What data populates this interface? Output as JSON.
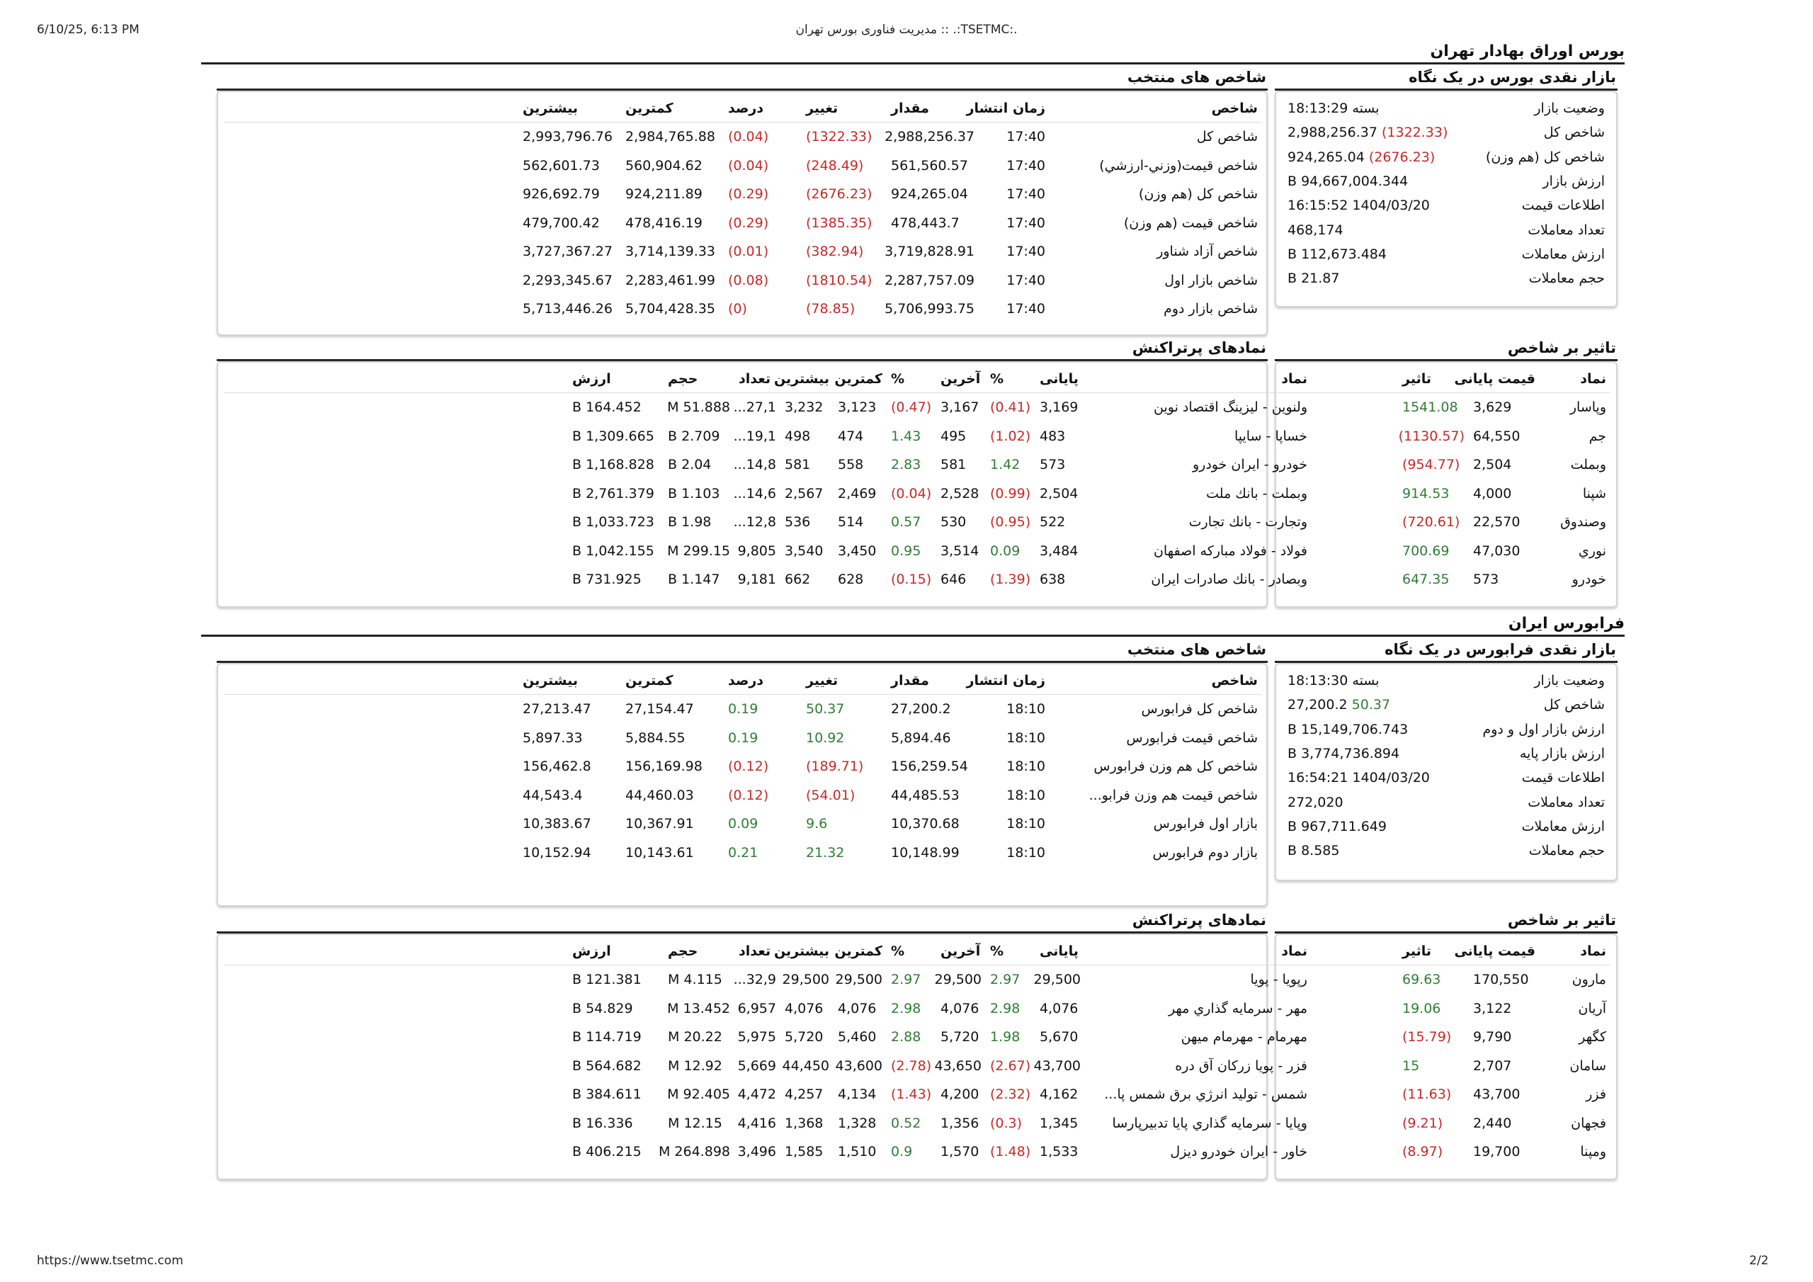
{
  "header": {
    "datetime": "6/10/25, 6:13 PM",
    "title": "مدیریت فناوری بورس تهران :: .:TSETMC:."
  },
  "footer": {
    "url": "https://www.tsetmc.com",
    "page": "2/2"
  },
  "tse": {
    "section_title": "بورس اوراق بهادار تهران",
    "glance": {
      "title": "بازار نقدی بورس در یک نگاه",
      "rows": [
        {
          "k": "وضعیت بازار",
          "v": "بسته 18:13:29",
          "c": ""
        },
        {
          "k": "شاخص کل",
          "v": "2,988,256.37",
          "c": "(1322.33)",
          "cc": "neg"
        },
        {
          "k": "شاخص کل (هم وزن)",
          "v": "924,265.04",
          "c": "(2676.23)",
          "cc": "neg"
        },
        {
          "k": "ارزش بازار",
          "v": "94,667,004.344 B",
          "c": ""
        },
        {
          "k": "اطلاعات قیمت",
          "v": "1404/03/20 16:15:52",
          "c": ""
        },
        {
          "k": "تعداد معاملات",
          "v": "468,174",
          "c": ""
        },
        {
          "k": "ارزش معاملات",
          "v": "112,673.484 B",
          "c": ""
        },
        {
          "k": "حجم معاملات",
          "v": "21.87 B",
          "c": ""
        }
      ]
    },
    "indices": {
      "title": "شاخص های منتخب",
      "headers": [
        "شاخص",
        "زمان انتشار",
        "مقدار",
        "تغییر",
        "درصد",
        "کمترین",
        "بیشترین"
      ],
      "rows": [
        {
          "name": "شاخص کل",
          "time": "17:40",
          "value": "2,988,256.37",
          "change": "(1322.33)",
          "cc": "neg",
          "pct": "(0.04)",
          "pc": "neg",
          "min": "2,984,765.88",
          "max": "2,993,796.76"
        },
        {
          "name": "شاخص قیمت(وزني-ارزشي)",
          "time": "17:40",
          "value": "561,560.57",
          "change": "(248.49)",
          "cc": "neg",
          "pct": "(0.04)",
          "pc": "neg",
          "min": "560,904.62",
          "max": "562,601.73"
        },
        {
          "name": "شاخص کل (هم وزن)",
          "time": "17:40",
          "value": "924,265.04",
          "change": "(2676.23)",
          "cc": "neg",
          "pct": "(0.29)",
          "pc": "neg",
          "min": "924,211.89",
          "max": "926,692.79"
        },
        {
          "name": "شاخص قیمت (هم وزن)",
          "time": "17:40",
          "value": "478,443.7",
          "change": "(1385.35)",
          "cc": "neg",
          "pct": "(0.29)",
          "pc": "neg",
          "min": "478,416.19",
          "max": "479,700.42"
        },
        {
          "name": "شاخص آزاد شناور",
          "time": "17:40",
          "value": "3,719,828.91",
          "change": "(382.94)",
          "cc": "neg",
          "pct": "(0.01)",
          "pc": "neg",
          "min": "3,714,139.33",
          "max": "3,727,367.27"
        },
        {
          "name": "شاخص بازار اول",
          "time": "17:40",
          "value": "2,287,757.09",
          "change": "(1810.54)",
          "cc": "neg",
          "pct": "(0.08)",
          "pc": "neg",
          "min": "2,283,461.99",
          "max": "2,293,345.67"
        },
        {
          "name": "شاخص بازار دوم",
          "time": "17:40",
          "value": "5,706,993.75",
          "change": "(78.85)",
          "cc": "neg",
          "pct": "(0)",
          "pc": "neg",
          "min": "5,704,428.35",
          "max": "5,713,446.26"
        }
      ]
    },
    "impact": {
      "title": "تاثیر بر شاخص",
      "headers": [
        "نماد",
        "قیمت پایانی",
        "تاثیر"
      ],
      "rows": [
        {
          "sym": "وپاسار",
          "price": "3,629",
          "eff": "1541.08",
          "ec": "pos"
        },
        {
          "sym": "جم",
          "price": "64,550",
          "eff": "(1130.57)",
          "ec": "neg"
        },
        {
          "sym": "وبملت",
          "price": "2,504",
          "eff": "(954.77)",
          "ec": "neg"
        },
        {
          "sym": "شپنا",
          "price": "4,000",
          "eff": "914.53",
          "ec": "pos"
        },
        {
          "sym": "وصندوق",
          "price": "22,570",
          "eff": "(720.61)",
          "ec": "neg"
        },
        {
          "sym": "نوري",
          "price": "47,030",
          "eff": "700.69",
          "ec": "pos"
        },
        {
          "sym": "خودرو",
          "price": "573",
          "eff": "647.35",
          "ec": "pos"
        }
      ]
    },
    "active": {
      "title": "نمادهای پرتراکنش",
      "headers": [
        "نماد",
        "پایانی",
        "%",
        "آخرین",
        "%",
        "کمترین",
        "بیشترین",
        "تعداد",
        "حجم",
        "ارزش"
      ],
      "rows": [
        {
          "sym": "ولنوین - لیزینگ اقتصاد نوین",
          "close": "3,169",
          "cp": "(0.41)",
          "cpc": "neg",
          "last": "3,167",
          "lp": "(0.47)",
          "lpc": "neg",
          "min": "3,123",
          "max": "3,232",
          "cnt": "27,1...",
          "vol": "51.888 M",
          "val": "164.452 B"
        },
        {
          "sym": "خساپا - سايپا",
          "close": "483",
          "cp": "(1.02)",
          "cpc": "neg",
          "last": "495",
          "lp": "1.43",
          "lpc": "pos",
          "min": "474",
          "max": "498",
          "cnt": "19,1...",
          "vol": "2.709 B",
          "val": "1,309.665 B"
        },
        {
          "sym": "خودرو - ايران‌ خودرو",
          "close": "573",
          "cp": "1.42",
          "cpc": "pos",
          "last": "581",
          "lp": "2.83",
          "lpc": "pos",
          "min": "558",
          "max": "581",
          "cnt": "14,8...",
          "vol": "2.04 B",
          "val": "1,168.828 B"
        },
        {
          "sym": "وبملت - بانك ملت",
          "close": "2,504",
          "cp": "(0.99)",
          "cpc": "neg",
          "last": "2,528",
          "lp": "(0.04)",
          "lpc": "neg",
          "min": "2,469",
          "max": "2,567",
          "cnt": "14,6...",
          "vol": "1.103 B",
          "val": "2,761.379 B"
        },
        {
          "sym": "وتجارت - بانك تجارت",
          "close": "522",
          "cp": "(0.95)",
          "cpc": "neg",
          "last": "530",
          "lp": "0.57",
          "lpc": "pos",
          "min": "514",
          "max": "536",
          "cnt": "12,8...",
          "vol": "1.98 B",
          "val": "1,033.723 B"
        },
        {
          "sym": "فولاد - فولاد مباركه اصفهان",
          "close": "3,484",
          "cp": "0.09",
          "cpc": "pos",
          "last": "3,514",
          "lp": "0.95",
          "lpc": "pos",
          "min": "3,450",
          "max": "3,540",
          "cnt": "9,805",
          "vol": "299.15 M",
          "val": "1,042.155 B"
        },
        {
          "sym": "وبصادر - بانك صادرات ايران",
          "close": "638",
          "cp": "(1.39)",
          "cpc": "neg",
          "last": "646",
          "lp": "(0.15)",
          "lpc": "neg",
          "min": "628",
          "max": "662",
          "cnt": "9,181",
          "vol": "1.147 B",
          "val": "731.925 B"
        }
      ]
    }
  },
  "ifb": {
    "section_title": "فرابورس ایران",
    "glance": {
      "title": "بازار نقدی فرابورس در یک نگاه",
      "rows": [
        {
          "k": "وضعیت بازار",
          "v": "بسته 18:13:30",
          "c": ""
        },
        {
          "k": "شاخص کل",
          "v": "27,200.2",
          "c": "50.37",
          "cc": "pos"
        },
        {
          "k": "ارزش بازار اول و دوم",
          "v": "15,149,706.743 B",
          "c": ""
        },
        {
          "k": "ارزش بازار پایه",
          "v": "3,774,736.894 B",
          "c": ""
        },
        {
          "k": "اطلاعات قیمت",
          "v": "1404/03/20 16:54:21",
          "c": ""
        },
        {
          "k": "تعداد معاملات",
          "v": "272,020",
          "c": ""
        },
        {
          "k": "ارزش معاملات",
          "v": "967,711.649 B",
          "c": ""
        },
        {
          "k": "حجم معاملات",
          "v": "8.585 B",
          "c": ""
        }
      ]
    },
    "indices": {
      "title": "شاخص های منتخب",
      "headers": [
        "شاخص",
        "زمان انتشار",
        "مقدار",
        "تغییر",
        "درصد",
        "کمترین",
        "بیشترین"
      ],
      "rows": [
        {
          "name": "شاخص کل فرابورس",
          "time": "18:10",
          "value": "27,200.2",
          "change": "50.37",
          "cc": "pos",
          "pct": "0.19",
          "pc": "pos",
          "min": "27,154.47",
          "max": "27,213.47"
        },
        {
          "name": "شاخص قیمت فرابورس",
          "time": "18:10",
          "value": "5,894.46",
          "change": "10.92",
          "cc": "pos",
          "pct": "0.19",
          "pc": "pos",
          "min": "5,884.55",
          "max": "5,897.33"
        },
        {
          "name": "شاخص کل هم وزن فرابورس",
          "time": "18:10",
          "value": "156,259.54",
          "change": "(189.71)",
          "cc": "neg",
          "pct": "(0.12)",
          "pc": "neg",
          "min": "156,169.98",
          "max": "156,462.8"
        },
        {
          "name": "شاخص قیمت هم وزن فرابو...",
          "time": "18:10",
          "value": "44,485.53",
          "change": "(54.01)",
          "cc": "neg",
          "pct": "(0.12)",
          "pc": "neg",
          "min": "44,460.03",
          "max": "44,543.4"
        },
        {
          "name": "بازار اول فرابورس",
          "time": "18:10",
          "value": "10,370.68",
          "change": "9.6",
          "cc": "pos",
          "pct": "0.09",
          "pc": "pos",
          "min": "10,367.91",
          "max": "10,383.67"
        },
        {
          "name": "بازار دوم فرابورس",
          "time": "18:10",
          "value": "10,148.99",
          "change": "21.32",
          "cc": "pos",
          "pct": "0.21",
          "pc": "pos",
          "min": "10,143.61",
          "max": "10,152.94"
        }
      ]
    },
    "impact": {
      "title": "تاثیر بر شاخص",
      "headers": [
        "نماد",
        "قیمت پایانی",
        "تاثیر"
      ],
      "rows": [
        {
          "sym": "مارون",
          "price": "170,550",
          "eff": "69.63",
          "ec": "pos"
        },
        {
          "sym": "آریان",
          "price": "3,122",
          "eff": "19.06",
          "ec": "pos"
        },
        {
          "sym": "کگهر",
          "price": "9,790",
          "eff": "(15.79)",
          "ec": "neg"
        },
        {
          "sym": "سامان",
          "price": "2,707",
          "eff": "15",
          "ec": "pos"
        },
        {
          "sym": "فزر",
          "price": "43,700",
          "eff": "(11.63)",
          "ec": "neg"
        },
        {
          "sym": "فجهان",
          "price": "2,440",
          "eff": "(9.21)",
          "ec": "neg"
        },
        {
          "sym": "ومپنا",
          "price": "19,700",
          "eff": "(8.97)",
          "ec": "neg"
        }
      ]
    },
    "active": {
      "title": "نمادهای پرتراکنش",
      "headers": [
        "نماد",
        "پایانی",
        "%",
        "آخرین",
        "%",
        "کمترین",
        "بیشترین",
        "تعداد",
        "حجم",
        "ارزش"
      ],
      "rows": [
        {
          "sym": "رپویا - پويا",
          "close": "29,500",
          "cp": "2.97",
          "cpc": "pos",
          "last": "29,500",
          "lp": "2.97",
          "lpc": "pos",
          "min": "29,500",
          "max": "29,500",
          "cnt": "32,9...",
          "vol": "4.115 M",
          "val": "121.381 B"
        },
        {
          "sym": "مهر - سرمايه گذاري مهر",
          "close": "4,076",
          "cp": "2.98",
          "cpc": "pos",
          "last": "4,076",
          "lp": "2.98",
          "lpc": "pos",
          "min": "4,076",
          "max": "4,076",
          "cnt": "6,957",
          "vol": "13.452 M",
          "val": "54.829 B"
        },
        {
          "sym": "مهرمام - مهرمام ميهن",
          "close": "5,670",
          "cp": "1.98",
          "cpc": "pos",
          "last": "5,720",
          "lp": "2.88",
          "lpc": "pos",
          "min": "5,460",
          "max": "5,720",
          "cnt": "5,975",
          "vol": "20.22 M",
          "val": "114.719 B"
        },
        {
          "sym": "فزر - پويا زركان آق دره",
          "close": "43,700",
          "cp": "(2.67)",
          "cpc": "neg",
          "last": "43,650",
          "lp": "(2.78)",
          "lpc": "neg",
          "min": "43,600",
          "max": "44,450",
          "cnt": "5,669",
          "vol": "12.92 M",
          "val": "564.682 B"
        },
        {
          "sym": "شمس - توليد انرژي برق شمس پا...",
          "close": "4,162",
          "cp": "(2.32)",
          "cpc": "neg",
          "last": "4,200",
          "lp": "(1.43)",
          "lpc": "neg",
          "min": "4,134",
          "max": "4,257",
          "cnt": "4,472",
          "vol": "92.405 M",
          "val": "384.611 B"
        },
        {
          "sym": "وپايا - سرمايه گذاري پايا تدبيرپارسا",
          "close": "1,345",
          "cp": "(0.3)",
          "cpc": "neg",
          "last": "1,356",
          "lp": "0.52",
          "lpc": "pos",
          "min": "1,328",
          "max": "1,368",
          "cnt": "4,416",
          "vol": "12.15 M",
          "val": "16.336 B"
        },
        {
          "sym": "خاور - ايران‌ خودرو ديزل",
          "close": "1,533",
          "cp": "(1.48)",
          "cpc": "neg",
          "last": "1,570",
          "lp": "0.9",
          "lpc": "pos",
          "min": "1,510",
          "max": "1,585",
          "cnt": "3,496",
          "vol": "264.898 M",
          "val": "406.215 B"
        }
      ]
    }
  }
}
